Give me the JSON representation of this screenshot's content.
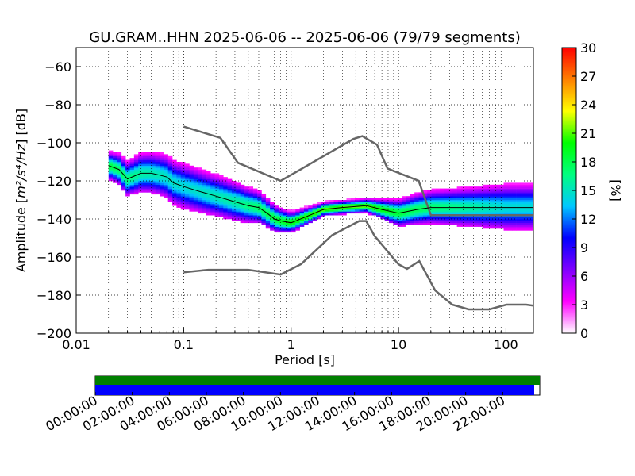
{
  "chart_data": {
    "type": "heatmap",
    "title": "GU.GRAM..HHN   2025-06-06 -- 2025-06-06  (79/79 segments)",
    "xlabel": "Period [s]",
    "ylabel_prefix": "Amplitude [",
    "ylabel_units": "m²/s⁴/Hz",
    "ylabel_suffix": "] [dB]",
    "x_scale": "log",
    "xlim": [
      0.01,
      180
    ],
    "ylim": [
      -200,
      -50
    ],
    "x_ticks": [
      {
        "value": 0.01,
        "label": "0.01"
      },
      {
        "value": 0.1,
        "label": "0.1"
      },
      {
        "value": 1,
        "label": "1"
      },
      {
        "value": 10,
        "label": "10"
      },
      {
        "value": 100,
        "label": "100"
      }
    ],
    "y_ticks": [
      {
        "value": -60,
        "label": "−60"
      },
      {
        "value": -80,
        "label": "−80"
      },
      {
        "value": -100,
        "label": "−100"
      },
      {
        "value": -120,
        "label": "−120"
      },
      {
        "value": -140,
        "label": "−140"
      },
      {
        "value": -160,
        "label": "−160"
      },
      {
        "value": -180,
        "label": "−180"
      },
      {
        "value": -200,
        "label": "−200"
      }
    ],
    "grid": true,
    "colorbar": {
      "label": "[%]",
      "range": [
        0,
        30
      ],
      "ticks": [
        {
          "value": 0,
          "label": "0"
        },
        {
          "value": 3,
          "label": "3"
        },
        {
          "value": 6,
          "label": "6"
        },
        {
          "value": 9,
          "label": "9"
        },
        {
          "value": 12,
          "label": "12"
        },
        {
          "value": 15,
          "label": "15"
        },
        {
          "value": 18,
          "label": "18"
        },
        {
          "value": 21,
          "label": "21"
        },
        {
          "value": 24,
          "label": "24"
        },
        {
          "value": 27,
          "label": "27"
        },
        {
          "value": 30,
          "label": "30"
        }
      ],
      "colors": [
        "#ffffff",
        "#ff00ff",
        "#8000ff",
        "#0000ff",
        "#00c8ff",
        "#00ff80",
        "#00ff00",
        "#ffff00",
        "#ff8000",
        "#ff0000"
      ]
    },
    "noise_model_high": {
      "x": [
        0.1,
        0.22,
        0.32,
        0.8,
        3.8,
        4.6,
        6.3,
        7.9,
        15.4,
        20,
        354.8
      ],
      "y": [
        -91.5,
        -97.4,
        -110.5,
        -120,
        -98,
        -96.5,
        -101,
        -113.5,
        -120,
        -138,
        -138
      ]
    },
    "noise_model_low": {
      "x": [
        0.1,
        0.17,
        0.4,
        0.8,
        1.24,
        2.4,
        4.3,
        5,
        6,
        10,
        12,
        15.6,
        21.9,
        31.6,
        45,
        70,
        101,
        154,
        180
      ],
      "y": [
        -168,
        -166.7,
        -166.7,
        -169.2,
        -163.7,
        -148.6,
        -141.1,
        -141.1,
        -149,
        -163.8,
        -166.2,
        -162.1,
        -177.5,
        -185,
        -187.5,
        -187.5,
        -185,
        -185,
        -185.5
      ]
    },
    "psd_center": {
      "x": [
        0.02,
        0.025,
        0.03,
        0.04,
        0.05,
        0.06,
        0.07,
        0.08,
        0.1,
        0.15,
        0.2,
        0.3,
        0.4,
        0.5,
        0.6,
        0.7,
        0.8,
        1,
        1.5,
        2,
        3,
        5,
        7,
        10,
        15,
        20,
        30,
        40,
        50,
        70,
        100,
        150,
        180
      ],
      "y": [
        -112,
        -114,
        -119,
        -116,
        -116,
        -117,
        -118,
        -121,
        -123,
        -126,
        -128,
        -131,
        -133,
        -134,
        -137,
        -140,
        -141,
        -142,
        -138,
        -135,
        -134,
        -133,
        -135,
        -137,
        -135,
        -134,
        -134,
        -134,
        -134,
        -134,
        -134,
        -134,
        -134
      ]
    },
    "psd_band_halfwidth_db": {
      "x": [
        0.02,
        0.04,
        0.1,
        0.3,
        0.7,
        1,
        2,
        5,
        10,
        20,
        50,
        100,
        180
      ],
      "y": [
        4,
        6,
        7,
        6,
        4,
        3,
        2,
        2,
        4,
        5,
        6,
        7,
        7
      ]
    },
    "timeline": {
      "ticks": [
        "00:00:00",
        "02:00:00",
        "04:00:00",
        "06:00:00",
        "08:00:00",
        "10:00:00",
        "12:00:00",
        "14:00:00",
        "16:00:00",
        "18:00:00",
        "20:00:00",
        "22:00:00"
      ],
      "data_coverage_hours": [
        0,
        24
      ],
      "psd_coverage_hours": [
        0,
        23.7
      ],
      "data_color": "#008000",
      "psd_color": "#0000ff"
    }
  }
}
